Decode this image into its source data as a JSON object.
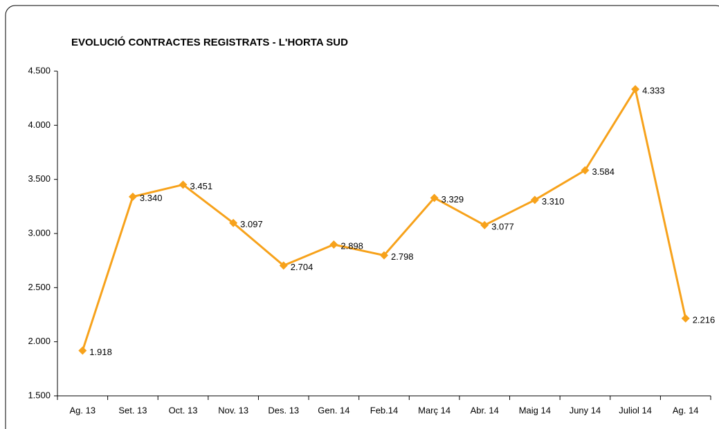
{
  "chart_data": {
    "type": "line",
    "title": "EVOLUCIÓ CONTRACTES REGISTRATS - L'HORTA SUD",
    "categories": [
      "Ag. 13",
      "Set. 13",
      "Oct. 13",
      "Nov. 13",
      "Des. 13",
      "Gen. 14",
      "Feb.14",
      "Març 14",
      "Abr. 14",
      "Maig 14",
      "Juny 14",
      "Juliol 14",
      "Ag. 14"
    ],
    "values": [
      1918,
      3340,
      3451,
      3097,
      2704,
      2898,
      2798,
      3329,
      3077,
      3310,
      3584,
      4333,
      2216
    ],
    "value_labels": [
      "1.918",
      "3.340",
      "3.451",
      "3.097",
      "2.704",
      "2.898",
      "2.798",
      "3.329",
      "3.077",
      "3.310",
      "3.584",
      "4.333",
      "2.216"
    ],
    "color": "#f7a21b",
    "ylim": [
      1500,
      4500
    ],
    "yticks": [
      {
        "value": 1500,
        "label": "1.500"
      },
      {
        "value": 2000,
        "label": "2.000"
      },
      {
        "value": 2500,
        "label": "2.500"
      },
      {
        "value": 3000,
        "label": "3.000"
      },
      {
        "value": 3500,
        "label": "3.500"
      },
      {
        "value": 4000,
        "label": "4.000"
      },
      {
        "value": 4500,
        "label": "4.500"
      }
    ],
    "grid": false
  }
}
